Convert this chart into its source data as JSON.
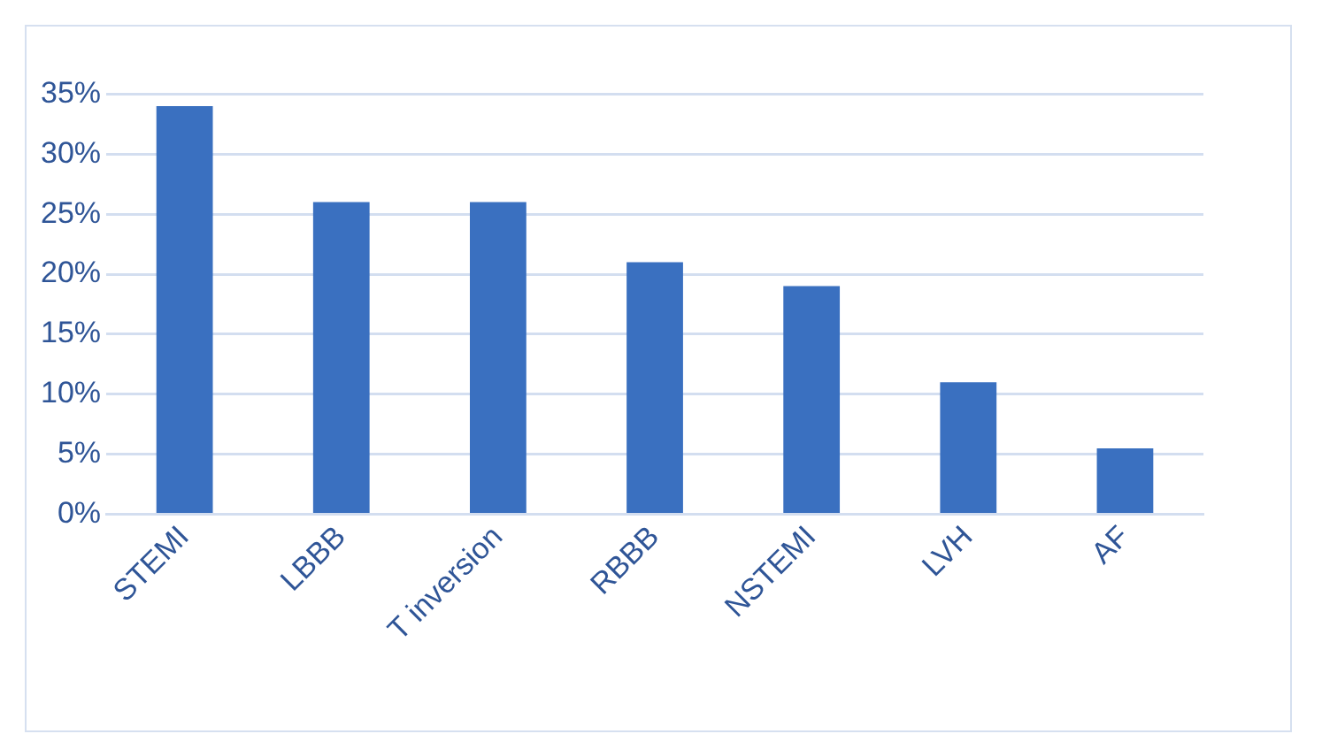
{
  "chart_data": {
    "type": "bar",
    "categories": [
      "STEMI",
      "LBBB",
      "T inversion",
      "RBBB",
      "NSTEMI",
      "LVH",
      "AF"
    ],
    "values": [
      34,
      26,
      26,
      21,
      19,
      11,
      5.5
    ],
    "color": "#3a70c0",
    "ylim": [
      0,
      35
    ],
    "yticks": [
      {
        "value": 0,
        "label": "0%"
      },
      {
        "value": 5,
        "label": "5%"
      },
      {
        "value": 10,
        "label": "10%"
      },
      {
        "value": 15,
        "label": "15%"
      },
      {
        "value": 20,
        "label": "20%"
      },
      {
        "value": 25,
        "label": "25%"
      },
      {
        "value": 30,
        "label": "30%"
      },
      {
        "value": 35,
        "label": "35%"
      }
    ],
    "grid": "y",
    "legend": false
  }
}
